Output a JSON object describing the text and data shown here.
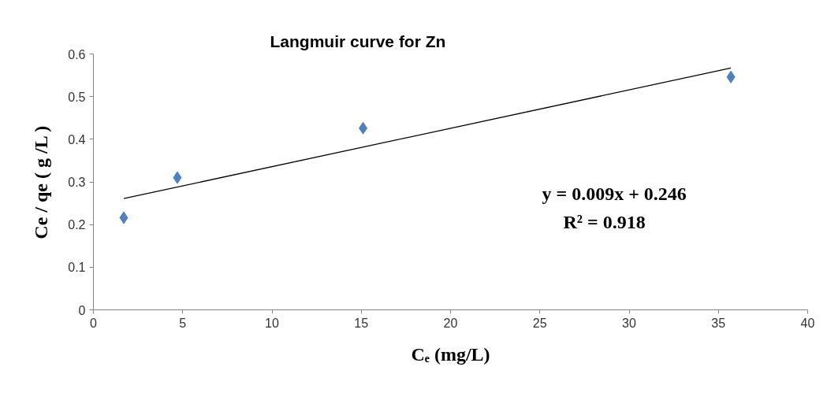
{
  "chart_data": {
    "type": "scatter",
    "title": "Langmuir curve for Zn",
    "xlabel": "Cₑ (mg/L)",
    "ylabel": "Ce / qe ( g /L )",
    "xlim": [
      0,
      40
    ],
    "xticks": [
      0,
      5,
      10,
      15,
      20,
      25,
      30,
      35,
      40
    ],
    "ylim": [
      0,
      0.6
    ],
    "yticks": [
      0,
      0.1,
      0.2,
      0.3,
      0.4,
      0.5,
      0.6
    ],
    "series": [
      {
        "color": "#4f81bd",
        "marker": "diamond",
        "x": [
          1.7,
          4.7,
          15.1,
          35.7
        ],
        "values": [
          0.216,
          0.31,
          0.426,
          0.546
        ]
      },
      {
        "type": "line",
        "color": "#000000",
        "marker": "none",
        "x": [
          1.7,
          35.7
        ],
        "values": [
          0.261,
          0.567
        ]
      }
    ],
    "annotations": [
      "y = 0.009x + 0.246",
      "R² = 0.918"
    ],
    "grid": false
  }
}
